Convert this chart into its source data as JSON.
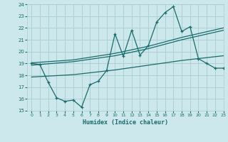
{
  "xlabel": "Humidex (Indice chaleur)",
  "bg_color": "#cce8ed",
  "grid_color": "#aacccc",
  "line_color": "#1a6b6b",
  "x_main": [
    0,
    1,
    2,
    3,
    4,
    5,
    6,
    7,
    8,
    9,
    10,
    11,
    12,
    13,
    14,
    15,
    16,
    17,
    18,
    19,
    20,
    21,
    22,
    23
  ],
  "y_main": [
    19.0,
    18.9,
    17.4,
    16.1,
    15.8,
    15.9,
    15.3,
    17.2,
    17.5,
    18.4,
    21.5,
    19.6,
    21.8,
    19.7,
    20.5,
    22.5,
    23.3,
    23.8,
    21.7,
    22.1,
    19.4,
    19.0,
    18.6,
    18.6
  ],
  "x_upper": [
    0,
    5,
    10,
    14,
    18,
    23
  ],
  "y_upper": [
    19.05,
    19.3,
    19.85,
    20.45,
    21.2,
    22.0
  ],
  "x_upper2": [
    0,
    5,
    10,
    14,
    18,
    23
  ],
  "y_upper2": [
    18.85,
    19.15,
    19.65,
    20.25,
    21.0,
    21.8
  ],
  "x_lower": [
    0,
    5,
    10,
    14,
    18,
    23
  ],
  "y_lower": [
    17.85,
    18.05,
    18.45,
    18.85,
    19.25,
    19.65
  ],
  "ylim": [
    15,
    24
  ],
  "xlim": [
    -0.5,
    23
  ],
  "yticks": [
    15,
    16,
    17,
    18,
    19,
    20,
    21,
    22,
    23,
    24
  ],
  "xticks": [
    0,
    1,
    2,
    3,
    4,
    5,
    6,
    7,
    8,
    9,
    10,
    11,
    12,
    13,
    14,
    15,
    16,
    17,
    18,
    19,
    20,
    21,
    22,
    23
  ]
}
